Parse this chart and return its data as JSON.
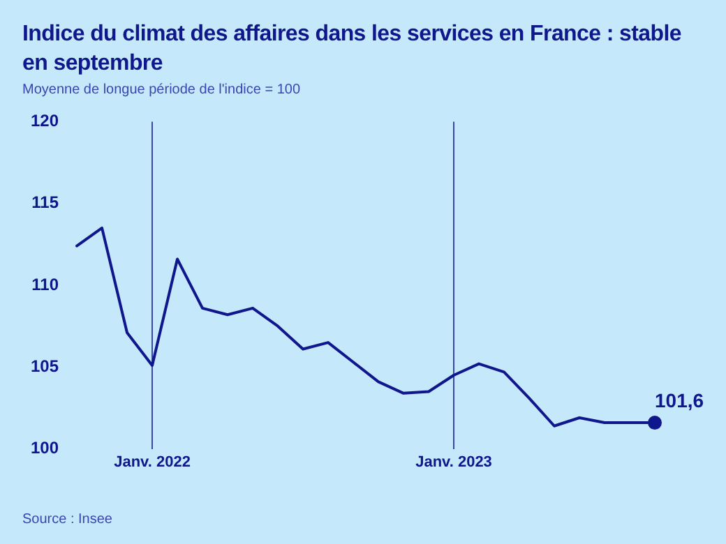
{
  "chart_data": {
    "type": "line",
    "title": "Indice du climat des affaires dans les services en France : stable en septembre",
    "subtitle": "Moyenne de longue période de l'indice = 100",
    "annotations": [
      "Source : Insee"
    ],
    "categories": [
      null,
      null,
      null,
      "Janv. 2022",
      null,
      null,
      null,
      null,
      null,
      null,
      null,
      null,
      null,
      null,
      null,
      "Janv. 2023",
      null,
      null,
      null,
      null,
      null,
      null,
      null,
      null
    ],
    "series": [
      {
        "color": "#10168c",
        "values": [
          112.4,
          113.5,
          107.1,
          105.1,
          111.6,
          108.6,
          108.2,
          108.6,
          107.5,
          106.1,
          106.5,
          105.3,
          104.1,
          103.4,
          103.5,
          104.5,
          105.2,
          104.7,
          103.1,
          101.4,
          101.9,
          101.6,
          101.6,
          101.6
        ],
        "value_labels": [
          null,
          null,
          null,
          null,
          null,
          null,
          null,
          null,
          null,
          null,
          null,
          null,
          null,
          null,
          null,
          null,
          null,
          null,
          null,
          null,
          null,
          null,
          null,
          "101,6"
        ]
      }
    ],
    "ylim": [
      100,
      120
    ],
    "yticks": [
      100,
      105,
      110,
      115,
      120
    ],
    "grid": "x",
    "legend": false,
    "line_style": "solid"
  }
}
